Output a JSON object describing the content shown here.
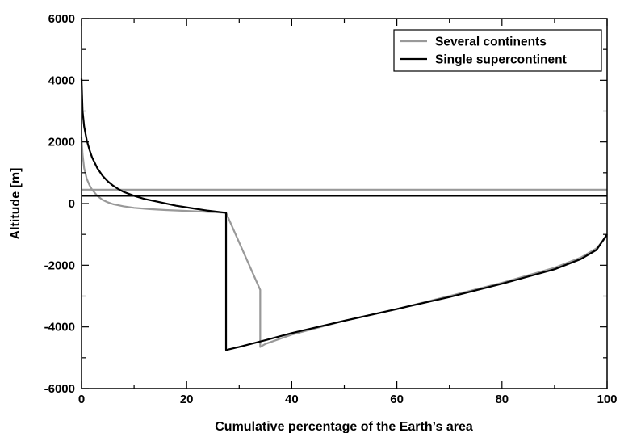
{
  "chart_data": {
    "type": "line",
    "title": "",
    "xlabel": "Cumulative percentage of the Earth’s area",
    "ylabel": "Altitude [m]",
    "xlim": [
      0,
      100
    ],
    "ylim": [
      -6000,
      6000
    ],
    "grid": false,
    "legend_position": "top-right",
    "x_ticks": [
      {
        "value": 0,
        "label": "0"
      },
      {
        "value": 20,
        "label": "20"
      },
      {
        "value": 40,
        "label": "40"
      },
      {
        "value": 60,
        "label": "60"
      },
      {
        "value": 80,
        "label": "80"
      },
      {
        "value": 100,
        "label": "100"
      }
    ],
    "y_ticks": [
      {
        "value": 6000,
        "label": "6000"
      },
      {
        "value": 4000,
        "label": "4000"
      },
      {
        "value": 2000,
        "label": "2000"
      },
      {
        "value": 0,
        "label": "0"
      },
      {
        "value": -2000,
        "label": "-2000"
      },
      {
        "value": -4000,
        "label": "-4000"
      },
      {
        "value": -6000,
        "label": "-6000"
      }
    ],
    "series": [
      {
        "name": "Several continents",
        "color": "#999999",
        "curves": [
          {
            "x": [
              0,
              0.2,
              0.5,
              1,
              1.5,
              2,
              3,
              4,
              5,
              6,
              8,
              10,
              13,
              16,
              20,
              24,
              27.5,
              34,
              34,
              35,
              40,
              50,
              60,
              70,
              80,
              90,
              95,
              98,
              100
            ],
            "y": [
              2150,
              1600,
              1150,
              800,
              600,
              450,
              250,
              120,
              40,
              -20,
              -90,
              -140,
              -180,
              -210,
              -240,
              -270,
              -300,
              -2800,
              -4650,
              -4550,
              -4250,
              -3800,
              -3420,
              -3000,
              -2570,
              -2080,
              -1750,
              -1450,
              -1050
            ]
          },
          {
            "x": [
              0,
              100
            ],
            "y": [
              450,
              450
            ]
          }
        ]
      },
      {
        "name": "Single supercontinent",
        "color": "#000000",
        "curves": [
          {
            "x": [
              0,
              0.2,
              0.5,
              1,
              1.5,
              2,
              3,
              4,
              5,
              6,
              7,
              8,
              10,
              12,
              15,
              18,
              21,
              24,
              27.5,
              27.5,
              30,
              35,
              40,
              50,
              60,
              70,
              80,
              90,
              95,
              98,
              100
            ],
            "y": [
              4050,
              3000,
              2500,
              2050,
              1750,
              1500,
              1150,
              900,
              720,
              580,
              470,
              380,
              250,
              150,
              40,
              -70,
              -150,
              -230,
              -300,
              -4750,
              -4650,
              -4430,
              -4200,
              -3800,
              -3420,
              -3030,
              -2600,
              -2130,
              -1800,
              -1500,
              -1000
            ]
          },
          {
            "x": [
              0,
              100
            ],
            "y": [
              250,
              250
            ]
          }
        ]
      }
    ]
  }
}
